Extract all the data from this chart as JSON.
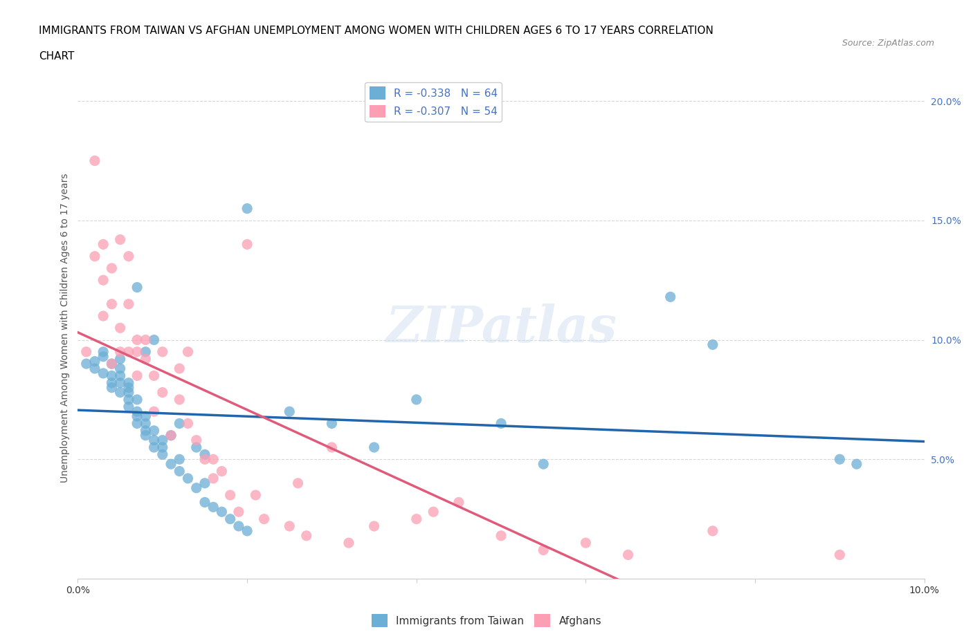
{
  "title_line1": "IMMIGRANTS FROM TAIWAN VS AFGHAN UNEMPLOYMENT AMONG WOMEN WITH CHILDREN AGES 6 TO 17 YEARS CORRELATION",
  "title_line2": "CHART",
  "source": "Source: ZipAtlas.com",
  "xlabel": "",
  "ylabel": "Unemployment Among Women with Children Ages 6 to 17 years",
  "xlim": [
    0.0,
    0.1
  ],
  "ylim": [
    0.0,
    0.21
  ],
  "xticks": [
    0.0,
    0.02,
    0.04,
    0.06,
    0.08,
    0.1
  ],
  "yticks": [
    0.0,
    0.05,
    0.1,
    0.15,
    0.2
  ],
  "xticklabels": [
    "0.0%",
    "",
    "",
    "",
    "",
    "10.0%"
  ],
  "yticklabels": [
    "",
    "5.0%",
    "10.0%",
    "15.0%",
    "20.0%"
  ],
  "legend_taiwan": "R = -0.338   N = 64",
  "legend_afghan": "R = -0.307   N = 54",
  "taiwan_color": "#6baed6",
  "afghan_color": "#fc9fb5",
  "taiwan_line_color": "#2166ac",
  "afghan_line_color": "#e05a7a",
  "watermark": "ZIPatlas",
  "taiwan_x": [
    0.001,
    0.002,
    0.002,
    0.003,
    0.003,
    0.003,
    0.004,
    0.004,
    0.004,
    0.004,
    0.005,
    0.005,
    0.005,
    0.005,
    0.005,
    0.006,
    0.006,
    0.006,
    0.006,
    0.006,
    0.007,
    0.007,
    0.007,
    0.007,
    0.007,
    0.008,
    0.008,
    0.008,
    0.008,
    0.008,
    0.009,
    0.009,
    0.009,
    0.009,
    0.01,
    0.01,
    0.01,
    0.011,
    0.011,
    0.012,
    0.012,
    0.012,
    0.013,
    0.014,
    0.014,
    0.015,
    0.015,
    0.015,
    0.016,
    0.017,
    0.018,
    0.019,
    0.02,
    0.02,
    0.025,
    0.03,
    0.035,
    0.04,
    0.05,
    0.055,
    0.07,
    0.075,
    0.09,
    0.092
  ],
  "taiwan_y": [
    0.09,
    0.088,
    0.091,
    0.086,
    0.093,
    0.095,
    0.08,
    0.082,
    0.085,
    0.09,
    0.078,
    0.082,
    0.085,
    0.088,
    0.092,
    0.072,
    0.075,
    0.078,
    0.08,
    0.082,
    0.065,
    0.068,
    0.07,
    0.075,
    0.122,
    0.06,
    0.062,
    0.065,
    0.068,
    0.095,
    0.055,
    0.058,
    0.062,
    0.1,
    0.052,
    0.055,
    0.058,
    0.048,
    0.06,
    0.045,
    0.05,
    0.065,
    0.042,
    0.038,
    0.055,
    0.032,
    0.04,
    0.052,
    0.03,
    0.028,
    0.025,
    0.022,
    0.155,
    0.02,
    0.07,
    0.065,
    0.055,
    0.075,
    0.065,
    0.048,
    0.118,
    0.098,
    0.05,
    0.048
  ],
  "afghan_x": [
    0.001,
    0.002,
    0.002,
    0.003,
    0.003,
    0.003,
    0.004,
    0.004,
    0.004,
    0.005,
    0.005,
    0.005,
    0.006,
    0.006,
    0.006,
    0.007,
    0.007,
    0.007,
    0.008,
    0.008,
    0.009,
    0.009,
    0.01,
    0.01,
    0.011,
    0.012,
    0.012,
    0.013,
    0.013,
    0.014,
    0.015,
    0.016,
    0.016,
    0.017,
    0.018,
    0.019,
    0.02,
    0.021,
    0.022,
    0.025,
    0.026,
    0.027,
    0.03,
    0.032,
    0.035,
    0.04,
    0.042,
    0.045,
    0.05,
    0.055,
    0.06,
    0.065,
    0.075,
    0.09
  ],
  "afghan_y": [
    0.095,
    0.175,
    0.135,
    0.14,
    0.125,
    0.11,
    0.13,
    0.115,
    0.09,
    0.142,
    0.105,
    0.095,
    0.135,
    0.115,
    0.095,
    0.1,
    0.085,
    0.095,
    0.1,
    0.092,
    0.085,
    0.07,
    0.095,
    0.078,
    0.06,
    0.088,
    0.075,
    0.095,
    0.065,
    0.058,
    0.05,
    0.042,
    0.05,
    0.045,
    0.035,
    0.028,
    0.14,
    0.035,
    0.025,
    0.022,
    0.04,
    0.018,
    0.055,
    0.015,
    0.022,
    0.025,
    0.028,
    0.032,
    0.018,
    0.012,
    0.015,
    0.01,
    0.02,
    0.01
  ]
}
